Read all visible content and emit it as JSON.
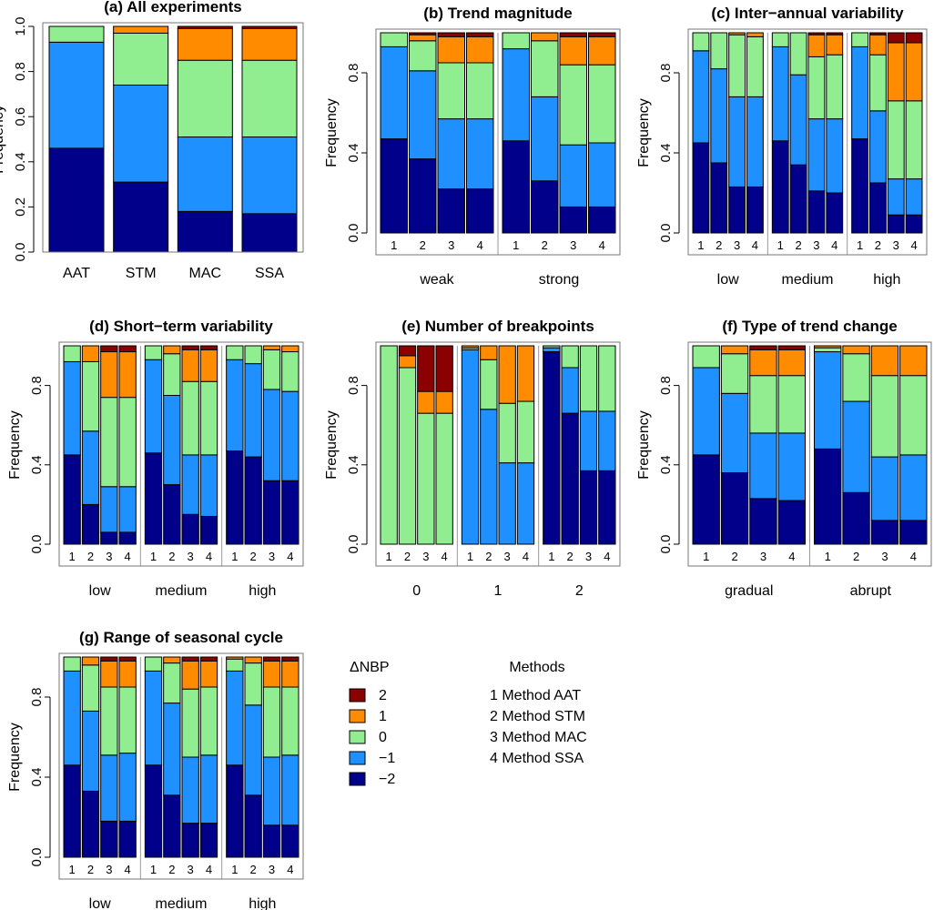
{
  "colors": {
    "-2": "#00008b",
    "-1": "#1e90ff",
    "0": "#90ee90",
    "1": "#ff8c00",
    "2": "#8b0000"
  },
  "chart_data": [
    {
      "id": "a",
      "type": "bar",
      "stacked": true,
      "title": "(a) All experiments",
      "ylabel": "Frequency",
      "ylim": [
        0,
        1
      ],
      "yticks": [
        "0.0",
        "0.2",
        "0.4",
        "0.6",
        "0.8",
        "1.0"
      ],
      "groups": [
        {
          "label": "",
          "bar_labels": [
            "AAT",
            "STM",
            "MAC",
            "SSA"
          ],
          "bars": [
            [
              0.46,
              0.47,
              0.07,
              0,
              0
            ],
            [
              0.31,
              0.43,
              0.23,
              0.03,
              0
            ],
            [
              0.18,
              0.33,
              0.34,
              0.14,
              0.01
            ],
            [
              0.17,
              0.34,
              0.34,
              0.14,
              0.01
            ]
          ]
        }
      ]
    },
    {
      "id": "b",
      "type": "bar",
      "stacked": true,
      "title": "(b) Trend magnitude",
      "ylabel": "Frequency",
      "ylim": [
        0,
        1
      ],
      "yticks": [
        "0.0",
        "0.4",
        "0.8"
      ],
      "groups": [
        {
          "label": "weak",
          "bar_labels": [
            "1",
            "2",
            "3",
            "4"
          ],
          "bars": [
            [
              0.47,
              0.46,
              0.07,
              0,
              0
            ],
            [
              0.37,
              0.44,
              0.15,
              0.03,
              0.01
            ],
            [
              0.22,
              0.35,
              0.28,
              0.13,
              0.02
            ],
            [
              0.22,
              0.35,
              0.28,
              0.13,
              0.02
            ]
          ]
        },
        {
          "label": "strong",
          "bar_labels": [
            "1",
            "2",
            "3",
            "4"
          ],
          "bars": [
            [
              0.46,
              0.46,
              0.08,
              0,
              0
            ],
            [
              0.26,
              0.42,
              0.28,
              0.04,
              0
            ],
            [
              0.13,
              0.31,
              0.4,
              0.14,
              0.02
            ],
            [
              0.13,
              0.32,
              0.39,
              0.14,
              0.02
            ]
          ]
        }
      ]
    },
    {
      "id": "c",
      "type": "bar",
      "stacked": true,
      "title": "(c) Inter−annual variability",
      "ylabel": "Frequency",
      "ylim": [
        0,
        1
      ],
      "yticks": [
        "0.0",
        "0.4",
        "0.8"
      ],
      "groups": [
        {
          "label": "low",
          "bar_labels": [
            "1",
            "2",
            "3",
            "4"
          ],
          "bars": [
            [
              0.45,
              0.46,
              0.09,
              0,
              0
            ],
            [
              0.35,
              0.47,
              0.18,
              0,
              0
            ],
            [
              0.23,
              0.45,
              0.31,
              0.01,
              0
            ],
            [
              0.23,
              0.45,
              0.3,
              0.02,
              0
            ]
          ]
        },
        {
          "label": "medium",
          "bar_labels": [
            "1",
            "2",
            "3",
            "4"
          ],
          "bars": [
            [
              0.46,
              0.47,
              0.07,
              0,
              0
            ],
            [
              0.34,
              0.45,
              0.21,
              0,
              0
            ],
            [
              0.21,
              0.36,
              0.31,
              0.11,
              0.01
            ],
            [
              0.2,
              0.37,
              0.32,
              0.1,
              0.01
            ]
          ]
        },
        {
          "label": "high",
          "bar_labels": [
            "1",
            "2",
            "3",
            "4"
          ],
          "bars": [
            [
              0.47,
              0.46,
              0.07,
              0,
              0
            ],
            [
              0.25,
              0.36,
              0.28,
              0.1,
              0.01
            ],
            [
              0.09,
              0.18,
              0.39,
              0.29,
              0.05
            ],
            [
              0.09,
              0.18,
              0.39,
              0.29,
              0.05
            ]
          ]
        }
      ]
    },
    {
      "id": "d",
      "type": "bar",
      "stacked": true,
      "title": "(d) Short−term variability",
      "ylabel": "Frequency",
      "ylim": [
        0,
        1
      ],
      "yticks": [
        "0.0",
        "0.4",
        "0.8"
      ],
      "groups": [
        {
          "label": "low",
          "bar_labels": [
            "1",
            "2",
            "3",
            "4"
          ],
          "bars": [
            [
              0.45,
              0.47,
              0.08,
              0,
              0
            ],
            [
              0.2,
              0.37,
              0.35,
              0.08,
              0
            ],
            [
              0.06,
              0.23,
              0.45,
              0.23,
              0.03
            ],
            [
              0.06,
              0.23,
              0.45,
              0.23,
              0.03
            ]
          ]
        },
        {
          "label": "medium",
          "bar_labels": [
            "1",
            "2",
            "3",
            "4"
          ],
          "bars": [
            [
              0.46,
              0.47,
              0.07,
              0,
              0
            ],
            [
              0.3,
              0.45,
              0.21,
              0.04,
              0
            ],
            [
              0.15,
              0.3,
              0.37,
              0.16,
              0.02
            ],
            [
              0.14,
              0.31,
              0.37,
              0.16,
              0.02
            ]
          ]
        },
        {
          "label": "high",
          "bar_labels": [
            "1",
            "2",
            "3",
            "4"
          ],
          "bars": [
            [
              0.47,
              0.46,
              0.07,
              0,
              0
            ],
            [
              0.44,
              0.47,
              0.09,
              0,
              0
            ],
            [
              0.32,
              0.46,
              0.2,
              0.02,
              0
            ],
            [
              0.32,
              0.45,
              0.2,
              0.03,
              0
            ]
          ]
        }
      ]
    },
    {
      "id": "e",
      "type": "bar",
      "stacked": true,
      "title": "(e) Number of breakpoints",
      "ylabel": "Frequency",
      "ylim": [
        0,
        1
      ],
      "yticks": [
        "0.0",
        "0.4",
        "0.8"
      ],
      "groups": [
        {
          "label": "0",
          "bar_labels": [
            "1",
            "2",
            "3",
            "4"
          ],
          "bars": [
            [
              0,
              0,
              1.0,
              0,
              0
            ],
            [
              0,
              0,
              0.89,
              0.06,
              0.05
            ],
            [
              0,
              0,
              0.66,
              0.11,
              0.23
            ],
            [
              0,
              0,
              0.66,
              0.11,
              0.23
            ]
          ]
        },
        {
          "label": "1",
          "bar_labels": [
            "1",
            "2",
            "3",
            "4"
          ],
          "bars": [
            [
              0,
              0.98,
              0.01,
              0.01,
              0
            ],
            [
              0,
              0.68,
              0.25,
              0.07,
              0
            ],
            [
              0,
              0.41,
              0.3,
              0.29,
              0
            ],
            [
              0,
              0.41,
              0.31,
              0.28,
              0
            ]
          ]
        },
        {
          "label": "2",
          "bar_labels": [
            "1",
            "2",
            "3",
            "4"
          ],
          "bars": [
            [
              0.97,
              0.02,
              0.01,
              0,
              0
            ],
            [
              0.66,
              0.23,
              0.11,
              0,
              0
            ],
            [
              0.37,
              0.3,
              0.33,
              0,
              0
            ],
            [
              0.37,
              0.3,
              0.33,
              0,
              0
            ]
          ]
        }
      ]
    },
    {
      "id": "f",
      "type": "bar",
      "stacked": true,
      "title": "(f) Type of trend change",
      "ylabel": "Frequency",
      "ylim": [
        0,
        1
      ],
      "yticks": [
        "0.0",
        "0.4",
        "0.8"
      ],
      "groups": [
        {
          "label": "gradual",
          "bar_labels": [
            "1",
            "2",
            "3",
            "4"
          ],
          "bars": [
            [
              0.45,
              0.44,
              0.11,
              0,
              0
            ],
            [
              0.36,
              0.4,
              0.2,
              0.04,
              0
            ],
            [
              0.23,
              0.33,
              0.29,
              0.13,
              0.02
            ],
            [
              0.22,
              0.34,
              0.29,
              0.13,
              0.02
            ]
          ]
        },
        {
          "label": "abrupt",
          "bar_labels": [
            "1",
            "2",
            "3",
            "4"
          ],
          "bars": [
            [
              0.48,
              0.49,
              0.02,
              0.01,
              0
            ],
            [
              0.26,
              0.46,
              0.24,
              0.04,
              0
            ],
            [
              0.12,
              0.32,
              0.41,
              0.15,
              0
            ],
            [
              0.12,
              0.33,
              0.4,
              0.15,
              0
            ]
          ]
        }
      ]
    },
    {
      "id": "g",
      "type": "bar",
      "stacked": true,
      "title": "(g) Range of seasonal cycle",
      "ylabel": "Frequency",
      "ylim": [
        0,
        1
      ],
      "yticks": [
        "0.0",
        "0.4",
        "0.8"
      ],
      "groups": [
        {
          "label": "low",
          "bar_labels": [
            "1",
            "2",
            "3",
            "4"
          ],
          "bars": [
            [
              0.46,
              0.47,
              0.07,
              0,
              0
            ],
            [
              0.33,
              0.4,
              0.23,
              0.04,
              0
            ],
            [
              0.18,
              0.33,
              0.34,
              0.13,
              0.02
            ],
            [
              0.18,
              0.34,
              0.33,
              0.13,
              0.02
            ]
          ]
        },
        {
          "label": "medium",
          "bar_labels": [
            "1",
            "2",
            "3",
            "4"
          ],
          "bars": [
            [
              0.46,
              0.47,
              0.07,
              0,
              0
            ],
            [
              0.31,
              0.46,
              0.2,
              0.03,
              0
            ],
            [
              0.17,
              0.33,
              0.34,
              0.14,
              0.02
            ],
            [
              0.17,
              0.34,
              0.34,
              0.13,
              0.02
            ]
          ]
        },
        {
          "label": "high",
          "bar_labels": [
            "1",
            "2",
            "3",
            "4"
          ],
          "bars": [
            [
              0.46,
              0.47,
              0.06,
              0.01,
              0
            ],
            [
              0.31,
              0.45,
              0.21,
              0.03,
              0
            ],
            [
              0.16,
              0.34,
              0.35,
              0.13,
              0.02
            ],
            [
              0.16,
              0.35,
              0.34,
              0.13,
              0.02
            ]
          ]
        }
      ]
    }
  ],
  "legend_nbp": {
    "title": "ΔNBP",
    "items": [
      {
        "key": "2",
        "label": "2"
      },
      {
        "key": "1",
        "label": "1"
      },
      {
        "key": "0",
        "label": "0"
      },
      {
        "key": "-1",
        "label": "−1"
      },
      {
        "key": "-2",
        "label": "−2"
      }
    ]
  },
  "legend_methods": {
    "title": "Methods",
    "items": [
      "1 Method AAT",
      "2 Method STM",
      "3 Method MAC",
      "4 Method SSA"
    ]
  }
}
